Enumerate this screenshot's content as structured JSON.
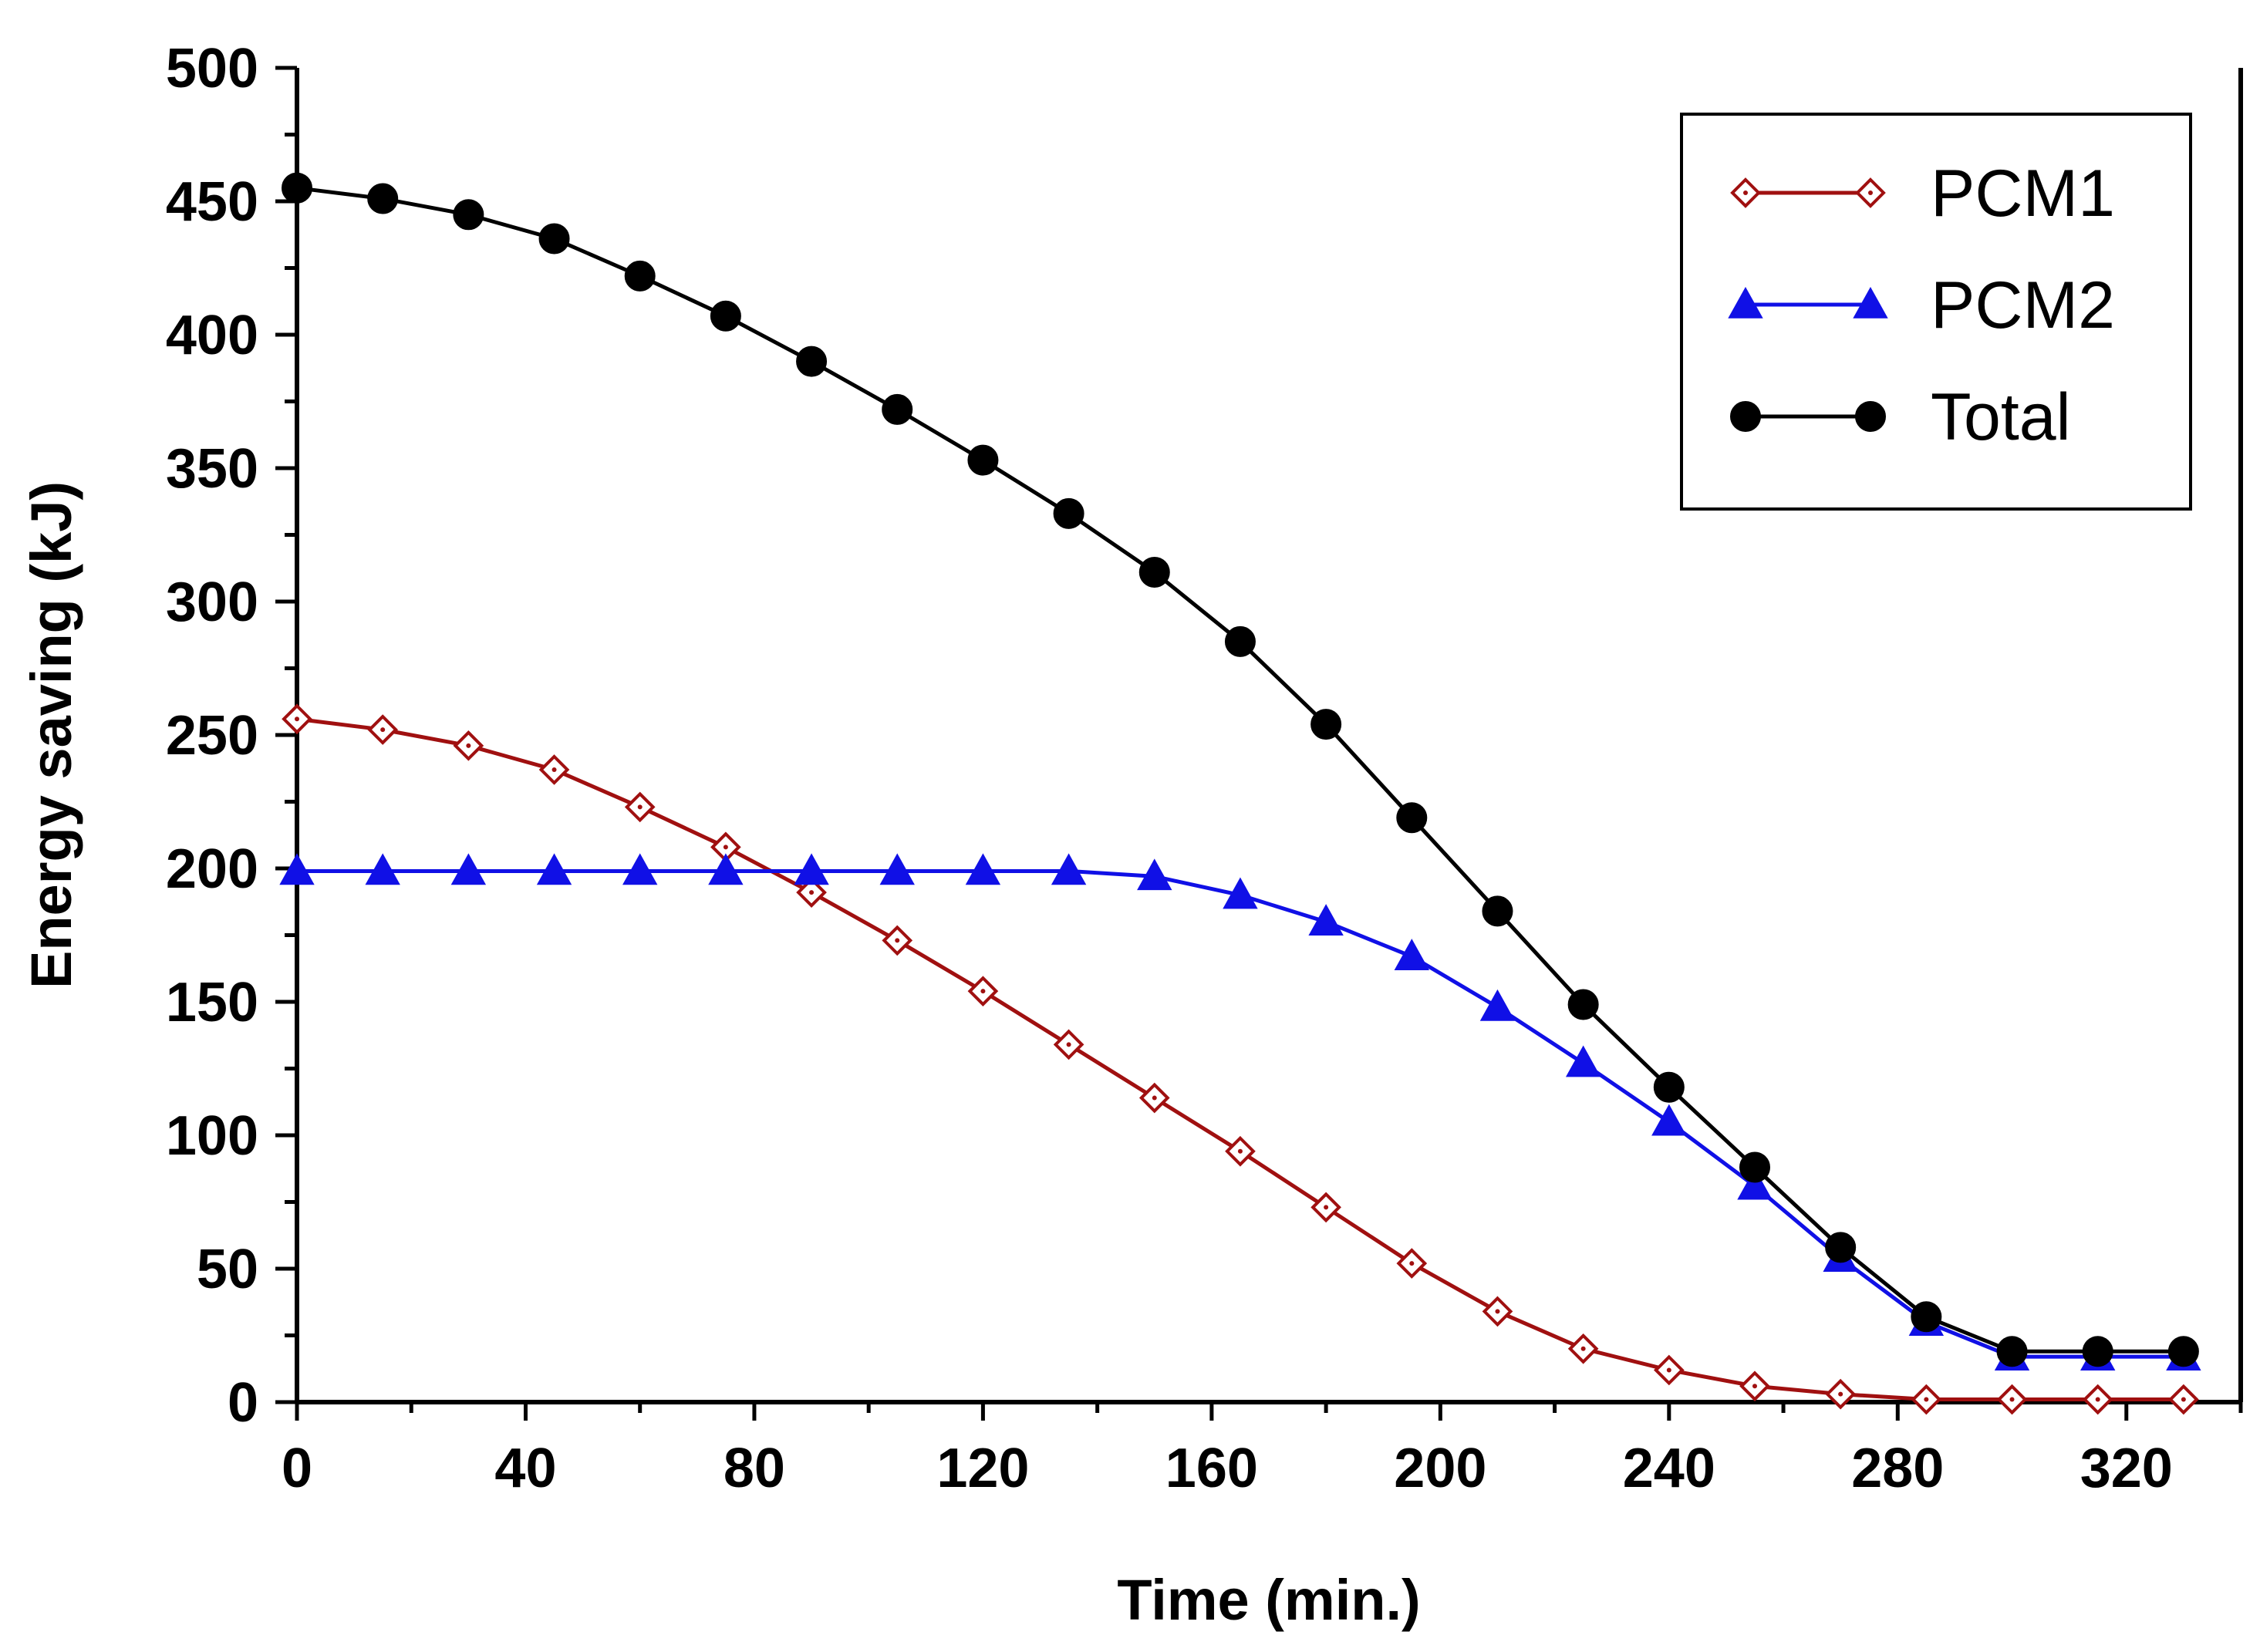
{
  "chart_data": {
    "type": "line",
    "title": "",
    "xlabel": "Time (min.)",
    "ylabel": "Energy saving (kJ)",
    "xlim": [
      0,
      340
    ],
    "ylim": [
      0,
      500
    ],
    "xticks": [
      0,
      40,
      80,
      120,
      160,
      200,
      240,
      280,
      320
    ],
    "yticks": [
      0,
      50,
      100,
      150,
      200,
      250,
      300,
      350,
      400,
      450,
      500
    ],
    "grid": false,
    "legend_position": "top-right",
    "x": [
      0,
      15,
      30,
      45,
      60,
      75,
      90,
      105,
      120,
      135,
      150,
      165,
      180,
      195,
      210,
      225,
      240,
      255,
      270,
      285,
      300,
      315,
      330
    ],
    "series": [
      {
        "name": "PCM1",
        "color": "#a01010",
        "marker": "diamond-open",
        "values": [
          256,
          252,
          246,
          237,
          223,
          208,
          191,
          173,
          154,
          134,
          114,
          94,
          73,
          52,
          34,
          20,
          12,
          6,
          3,
          1,
          1,
          1,
          1
        ]
      },
      {
        "name": "PCM2",
        "color": "#1010e6",
        "marker": "triangle",
        "values": [
          199,
          199,
          199,
          199,
          199,
          199,
          199,
          199,
          199,
          199,
          197,
          190,
          180,
          167,
          148,
          127,
          105,
          81,
          54,
          30,
          17,
          17,
          17
        ]
      },
      {
        "name": "Total",
        "color": "#000000",
        "marker": "circle",
        "values": [
          455,
          451,
          445,
          436,
          422,
          407,
          390,
          372,
          353,
          333,
          311,
          285,
          254,
          219,
          184,
          149,
          118,
          88,
          58,
          32,
          19,
          19,
          19
        ]
      }
    ]
  }
}
